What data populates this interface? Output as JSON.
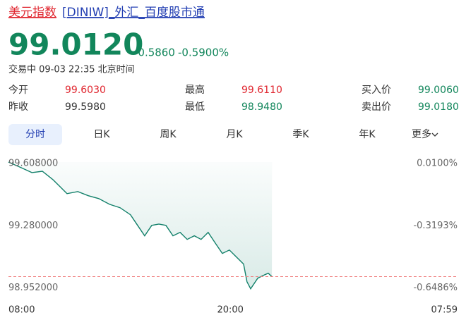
{
  "header": {
    "name": "美元指数",
    "code": "[DINIW]_外汇_百度股市通"
  },
  "quote": {
    "price": "99.0120",
    "change": "-0.5860",
    "change_pct": "-0.5900%",
    "status": "交易中 09-03 22:35 北京时间",
    "fields": [
      {
        "label": "今开",
        "value": "99.6030",
        "color": "#e0262f"
      },
      {
        "label": "最高",
        "value": "99.6110",
        "color": "#e0262f"
      },
      {
        "label": "买入价",
        "value": "99.0060",
        "color": "#12865b"
      },
      {
        "label": "昨收",
        "value": "99.5980",
        "color": "#333333"
      },
      {
        "label": "最低",
        "value": "98.9480",
        "color": "#12865b"
      },
      {
        "label": "卖出价",
        "value": "99.0180",
        "color": "#12865b"
      }
    ]
  },
  "tabs": [
    "分时",
    "日K",
    "周K",
    "月K",
    "季K",
    "年K",
    "更多"
  ],
  "chart_data": {
    "type": "area",
    "color": "#12806a",
    "x": [
      0,
      41,
      76,
      110,
      144,
      167,
      190,
      225,
      259,
      293,
      328,
      362,
      396,
      419,
      442,
      465,
      488,
      511,
      534,
      557,
      580,
      603,
      625,
      648,
      671,
      694,
      717,
      740,
      763,
      774,
      786,
      809,
      832,
      843,
      855
    ],
    "values": [
      99.615,
      99.586,
      99.56,
      99.567,
      99.523,
      99.486,
      99.449,
      99.46,
      99.438,
      99.423,
      99.393,
      99.375,
      99.338,
      99.282,
      99.227,
      99.282,
      99.289,
      99.282,
      99.227,
      99.245,
      99.208,
      99.227,
      99.208,
      99.245,
      99.189,
      99.134,
      99.152,
      99.115,
      99.078,
      98.985,
      98.948,
      99.004,
      99.022,
      99.03,
      99.012
    ],
    "xlim": [
      0,
      1439
    ],
    "xticks": [
      {
        "value": 0,
        "label": "08:00"
      },
      {
        "value": 720,
        "label": "20:00"
      },
      {
        "value": 1439,
        "label": "07:59"
      }
    ],
    "ylim": [
      98.91,
      99.63
    ],
    "yticks": [
      {
        "value": 99.608,
        "label": "99.608000"
      },
      {
        "value": 99.28,
        "label": "99.280000"
      },
      {
        "value": 98.952,
        "label": "98.952000"
      }
    ],
    "y2lim": [
      -0.6908,
      0.0321
    ],
    "y2ticks": [
      {
        "value": 0.01,
        "label": "0.0100%"
      },
      {
        "value": -0.3193,
        "label": "-0.3193%"
      },
      {
        "value": -0.6486,
        "label": "-0.6486%"
      }
    ],
    "grid": false
  }
}
